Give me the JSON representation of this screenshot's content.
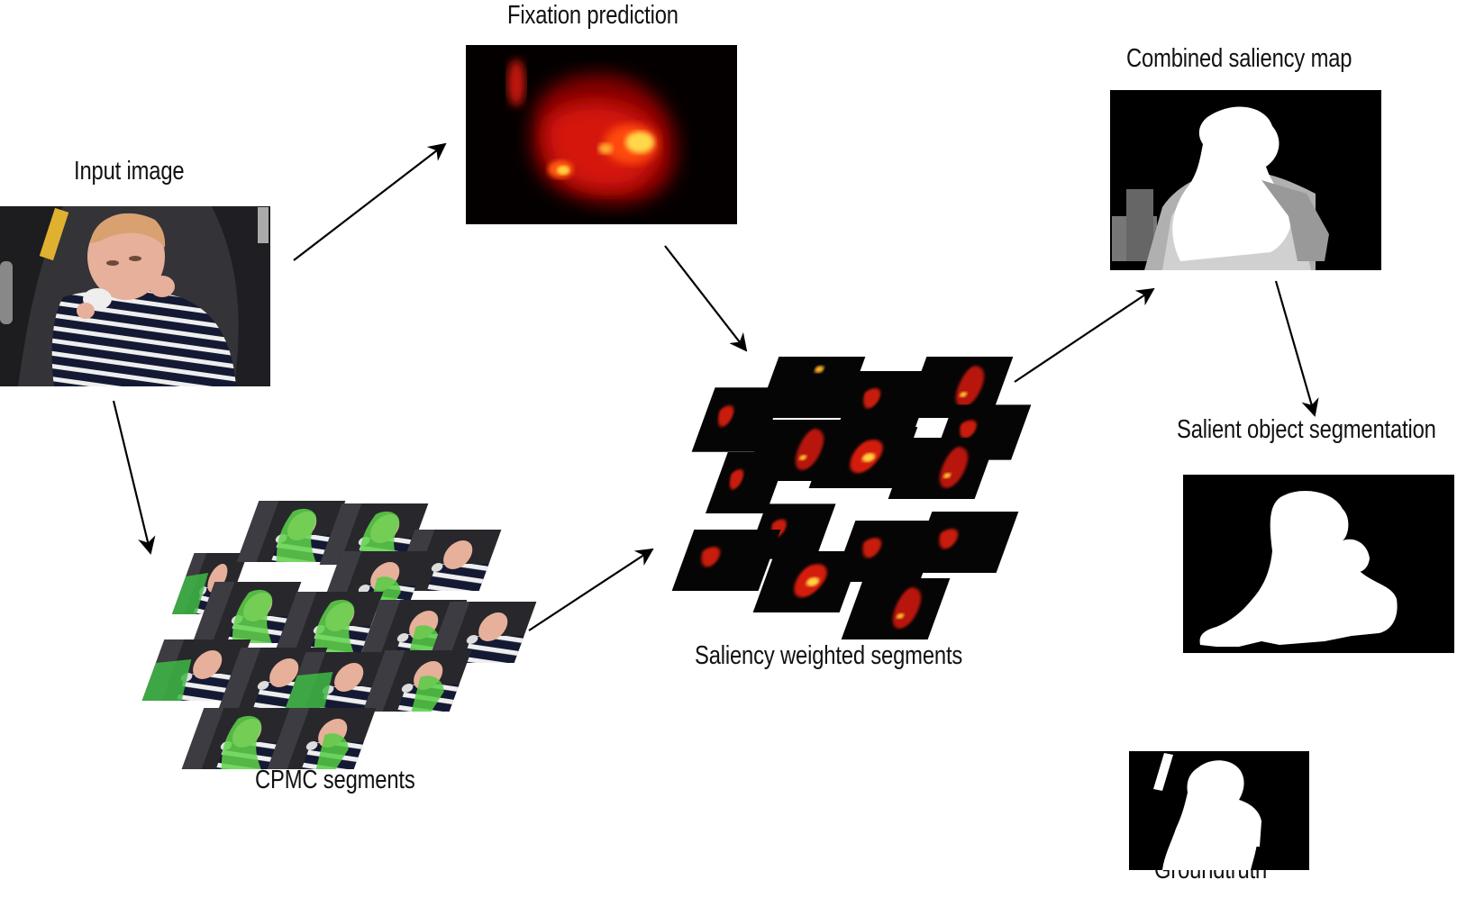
{
  "labels": {
    "input_image": "Input image",
    "fixation_prediction": "Fixation prediction",
    "combined_saliency_map": "Combined saliency map",
    "salient_object_segmentation": "Salient object segmentation",
    "cpmc_segments": "CPMC segments",
    "saliency_weighted_segments": "Saliency weighted segments",
    "groundtruth": "Groundtruth"
  },
  "colors": {
    "arrow": "#000000",
    "segment_green": "#5fd34a",
    "heat_red": "#e01010",
    "heat_yellow": "#ffe040",
    "stripe_navy": "#141a33",
    "skin": "#e7b09a"
  }
}
